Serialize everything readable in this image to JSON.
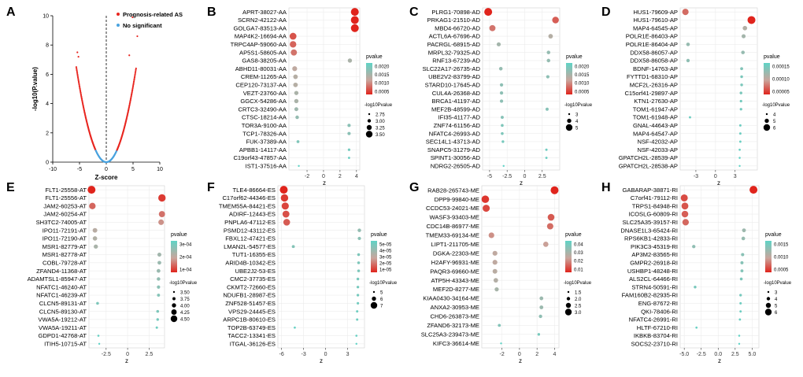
{
  "figure": {
    "panel_letters": [
      "A",
      "B",
      "C",
      "D",
      "E",
      "F",
      "G",
      "H"
    ]
  },
  "chart_data": [
    {
      "panel": "A",
      "type": "scatter",
      "xlabel": "Z-score",
      "ylabel": "-log10(P.value)",
      "xlim": [
        -10,
        10
      ],
      "ylim": [
        0,
        10
      ],
      "xticks": [
        "-10",
        "-5",
        "0",
        "5",
        "10"
      ],
      "yticks": [
        "0",
        "2",
        "4",
        "6",
        "8",
        "10"
      ],
      "legend": [
        "Prognosis-related AS",
        "No significant"
      ],
      "colors": {
        "significant": "#e8251f",
        "nonsig": "#4aa3df",
        "line": "#000000"
      },
      "threshold_x": 0,
      "outlier_points": [
        [
          5.8,
          8.6
        ],
        [
          4.9,
          9.9
        ],
        [
          -5.4,
          7.5
        ],
        [
          -5.2,
          7.2
        ],
        [
          4.3,
          7.3
        ]
      ],
      "curve": {
        "a": 0.207,
        "max_abs_z": 5.6,
        "sig_abs_z": 1.96
      }
    },
    {
      "panel": "B",
      "type": "scatter",
      "subtype": "dot",
      "xlabel": "z",
      "xlim": [
        -4.2,
        4.4
      ],
      "xticks": [
        -2,
        0,
        2,
        4
      ],
      "color_legend": {
        "title": "pvalue",
        "ticks": [
          "0.0020",
          "0.0015",
          "0.0010",
          "0.0005"
        ]
      },
      "size_legend": {
        "title": "-log10Pvalue",
        "ticks": [
          "2.75",
          "3.00",
          "3.25",
          "3.50"
        ]
      },
      "categories": [
        "APRT-38027-AA",
        "SCRN2-42122-AA",
        "GOLGA7-83513-AA",
        "MAP4K2-16694-AA",
        "TRPC4AP-59060-AA",
        "AP5S1-58605-AA",
        "GAS8-38205-AA",
        "ABHD11-80031-AA",
        "CREM-11265-AA",
        "CEP120-73137-AA",
        "VEZT-23760-AA",
        "GGCX-54286-AA",
        "CRTC3-32490-AA",
        "CTSC-18214-AA",
        "TOR3A-9100-AA",
        "TCP1-78326-AA",
        "FUK-37389-AA",
        "APBB1-14117-AA",
        "C19orf43-47857-AA",
        "IST1-37516-AA"
      ],
      "z": [
        3.8,
        3.8,
        3.8,
        -3.7,
        -3.7,
        -3.6,
        3.2,
        -3.5,
        -3.4,
        -3.4,
        -3.3,
        -3.3,
        -3.3,
        -3.2,
        3.1,
        3.1,
        -3.1,
        3.1,
        3.1,
        -3.0
      ],
      "logp": [
        3.65,
        3.65,
        3.65,
        3.5,
        3.45,
        3.4,
        3.1,
        3.2,
        3.15,
        3.15,
        3.1,
        3.1,
        3.05,
        3.0,
        2.95,
        2.95,
        2.9,
        2.85,
        2.8,
        2.75
      ]
    },
    {
      "panel": "C",
      "type": "scatter",
      "subtype": "dot",
      "xlabel": "z",
      "xlim": [
        -6.0,
        5.0
      ],
      "xticks": [
        -5.0,
        -2.5,
        0.0,
        2.5
      ],
      "color_legend": {
        "title": "pvalue",
        "ticks": [
          "0.0020",
          "0.0015",
          "0.0010",
          "0.0005"
        ]
      },
      "size_legend": {
        "title": "-log10Pvalue",
        "ticks": [
          "3",
          "4",
          "5"
        ]
      },
      "categories": [
        "PLRG1-70898-AD",
        "PRKAG1-21510-AD",
        "MBD4-66720-AD",
        "ACTL6A-67696-AD",
        "PACRGL-68915-AD",
        "MRPL32-79325-AD",
        "RNF13-67239-AD",
        "SLC22A17-26735-AD",
        "UBE2V2-83799-AD",
        "STARD10-17645-AD",
        "CUL4A-26368-AD",
        "BRCA1-41197-AD",
        "MEF2B-48599-AD",
        "IFI35-41177-AD",
        "ZNF74-61156-AD",
        "NFATC4-26993-AD",
        "SEC14L1-43713-AD",
        "SNAPC5-31279-AD",
        "SPINT1-30056-AD",
        "NDRG2-26505-AD"
      ],
      "z": [
        -5.2,
        4.4,
        -4.6,
        3.7,
        -3.7,
        3.4,
        3.4,
        -3.4,
        3.3,
        -3.3,
        -3.3,
        -3.3,
        3.2,
        -3.2,
        -3.2,
        -3.2,
        -3.1,
        3.1,
        3.1,
        -3.0
      ],
      "logp": [
        5.4,
        4.9,
        4.7,
        4.0,
        3.8,
        3.6,
        3.6,
        3.6,
        3.5,
        3.5,
        3.5,
        3.5,
        3.4,
        3.4,
        3.3,
        3.3,
        3.2,
        3.1,
        3.05,
        2.9
      ]
    },
    {
      "panel": "D",
      "type": "scatter",
      "subtype": "dot",
      "xlabel": "z",
      "xlim": [
        -5.4,
        6.4
      ],
      "xticks": [
        -3,
        0,
        3
      ],
      "color_legend": {
        "title": "pvalue",
        "ticks": [
          "0.00015",
          "0.00010",
          "0.00005"
        ]
      },
      "size_legend": {
        "title": "-log10Pvalue",
        "ticks": [
          "4",
          "5",
          "6"
        ]
      },
      "categories": [
        "HUS1-79609-AP",
        "HUS1-79610-AP",
        "MAP4-64545-AP",
        "POLR1E-86403-AP",
        "POLR1E-86404-AP",
        "DDX58-86057-AP",
        "DDX58-86058-AP",
        "BDNF-14763-AP",
        "FYTTD1-68310-AP",
        "MCF2L-26316-AP",
        "C15orf41-29897-AP",
        "KTN1-27630-AP",
        "TOM1-61947-AP",
        "TOM1-61948-AP",
        "GNAL-44643-AP",
        "MAP4-64547-AP",
        "NSF-42032-AP",
        "NSF-42033-AP",
        "GPATCH2L-28539-AP",
        "GPATCH2L-28538-AP"
      ],
      "z": [
        -4.6,
        5.5,
        4.5,
        4.3,
        -4.2,
        4.2,
        -4.2,
        4.0,
        4.0,
        4.0,
        3.9,
        3.9,
        3.9,
        -3.9,
        3.8,
        3.8,
        3.8,
        3.7,
        3.7,
        3.7
      ],
      "logp": [
        5.9,
        6.6,
        5.0,
        4.8,
        4.6,
        4.6,
        4.5,
        4.3,
        4.2,
        4.2,
        4.2,
        4.1,
        4.1,
        4.0,
        4.0,
        4.0,
        3.95,
        3.9,
        3.85,
        3.8
      ]
    },
    {
      "panel": "E",
      "type": "scatter",
      "subtype": "dot",
      "xlabel": "z",
      "xlim": [
        -4.5,
        4.3
      ],
      "xticks": [
        -2.5,
        0.0,
        2.5
      ],
      "color_legend": {
        "title": "pvalue",
        "ticks": [
          "3e-04",
          "2e-04",
          "1e-04"
        ]
      },
      "size_legend": {
        "title": "-log10Pvalue",
        "ticks": [
          "3.50",
          "3.75",
          "4.00",
          "4.25",
          "4.50"
        ]
      },
      "categories": [
        "FLT1-25558-AT",
        "FLT1-25556-AT",
        "JAM2-60253-AT",
        "JAM2-60254-AT",
        "SH3TC2-74005-AT",
        "IPO11-72191-AT",
        "IPO11-72190-AT",
        "MSR1-82779-AT",
        "MSR1-82778-AT",
        "COBL-79728-AT",
        "ZFAND4-11368-AT",
        "ADAMTSL1-85947-AT",
        "NFATC1-46240-AT",
        "NFATC1-46239-AT",
        "CLCN5-89131-AT",
        "CLCN5-89130-AT",
        "VWA5A-19212-AT",
        "VWA5A-19211-AT",
        "GDPD1-42768-AT",
        "ITIH5-10715-AT"
      ],
      "z": [
        -4.2,
        4.0,
        -4.1,
        4.0,
        3.9,
        -3.8,
        -3.8,
        -3.7,
        3.7,
        3.7,
        3.6,
        3.6,
        3.6,
        3.6,
        -3.5,
        3.5,
        3.5,
        3.4,
        -3.4,
        -3.3
      ],
      "logp": [
        4.7,
        4.6,
        4.4,
        4.35,
        4.2,
        4.0,
        3.95,
        3.9,
        3.85,
        3.8,
        3.8,
        3.75,
        3.7,
        3.65,
        3.6,
        3.6,
        3.55,
        3.5,
        3.45,
        3.4
      ]
    },
    {
      "panel": "F",
      "type": "scatter",
      "subtype": "dot",
      "xlabel": "z",
      "xlim": [
        -6.5,
        5.3
      ],
      "xticks": [
        -6,
        -3,
        0,
        3
      ],
      "color_legend": {
        "title": "pvalue",
        "ticks": [
          "5e-05",
          "4e-05",
          "3e-05",
          "2e-05",
          "1e-05"
        ]
      },
      "size_legend": {
        "title": "-log10Pvalue",
        "ticks": [
          "5",
          "6",
          "7"
        ]
      },
      "categories": [
        "TLE4-86664-ES",
        "C17orf62-44346-ES",
        "TMEM55A-84421-ES",
        "ADIRF-12443-ES",
        "PNPLA6-47112-ES",
        "PSMD12-43112-ES",
        "FBXL12-47421-ES",
        "LMAN2L-54577-ES",
        "TUT1-16355-ES",
        "ARID4B-10342-ES",
        "UBE2J2-53-ES",
        "CMC2-37735-ES",
        "CKMT2-72660-ES",
        "NDUFB1-28987-ES",
        "ZNF528-51457-ES",
        "VPS29-24445-ES",
        "ARPC1B-80610-ES",
        "TOP2B-63749-ES",
        "TACC2-13341-ES",
        "ITGAL-36126-ES"
      ],
      "z": [
        -5.7,
        -5.6,
        -5.5,
        -5.4,
        -5.3,
        4.6,
        4.6,
        -4.4,
        4.5,
        4.5,
        4.5,
        4.4,
        4.4,
        4.4,
        4.4,
        4.3,
        4.3,
        -4.2,
        4.2,
        4.2
      ],
      "logp": [
        7.2,
        7.0,
        6.9,
        6.8,
        6.7,
        5.3,
        5.2,
        5.1,
        5.0,
        5.0,
        5.0,
        4.95,
        4.9,
        4.9,
        4.85,
        4.8,
        4.8,
        4.7,
        4.7,
        4.6
      ]
    },
    {
      "panel": "G",
      "type": "scatter",
      "subtype": "dot",
      "xlabel": "z",
      "xlim": [
        -4.3,
        4.5
      ],
      "xticks": [
        -2,
        0,
        2,
        4
      ],
      "color_legend": {
        "title": "pvalue",
        "ticks": [
          "0.04",
          "0.03",
          "0.02",
          "0.01"
        ]
      },
      "size_legend": {
        "title": "-log10Pvalue",
        "ticks": [
          "1.5",
          "2.0",
          "2.5",
          "3.0"
        ]
      },
      "categories": [
        "RAB28-265743-ME",
        "DPP9-99840-ME",
        "CCDC53-24021-ME",
        "WASF3-93403-ME",
        "CDC14B-86977-ME",
        "TMEM33-69134-ME",
        "LIPT1-211705-ME",
        "DGKA-22303-ME",
        "H2AFY-96931-ME",
        "PAQR3-69660-ME",
        "ATP5H-43343-ME",
        "MEF2D-8277-ME",
        "KIAA0430-34164-ME",
        "ANXA2-30953-ME",
        "CHD6-263873-ME",
        "ZFAND6-32173-ME",
        "SLC25A3-239473-ME",
        "KIFC3-36614-ME"
      ],
      "z": [
        4.0,
        -3.9,
        -3.8,
        3.6,
        3.5,
        -3.2,
        3.0,
        -2.8,
        -2.8,
        -2.8,
        -2.7,
        -2.6,
        2.5,
        2.5,
        2.4,
        -2.3,
        2.2,
        -2.1
      ],
      "logp": [
        3.2,
        3.1,
        3.0,
        2.9,
        2.8,
        2.6,
        2.5,
        2.4,
        2.4,
        2.35,
        2.3,
        2.2,
        2.1,
        2.1,
        2.0,
        1.9,
        1.8,
        1.6
      ]
    },
    {
      "panel": "H",
      "type": "scatter",
      "subtype": "dot",
      "xlabel": "z",
      "xlim": [
        -5.6,
        6.0
      ],
      "xticks": [
        "-5.0",
        "-2.5",
        "0.0",
        "2.5",
        "5.0"
      ],
      "color_legend": {
        "title": "pvalue",
        "ticks": [
          "0.0015",
          "0.0010",
          "0.0005"
        ]
      },
      "size_legend": {
        "title": "-log10Pvalue",
        "ticks": [
          "3",
          "4",
          "5",
          "6"
        ]
      },
      "categories": [
        "GABARAP-38871-RI",
        "C7orf41-79112-RI",
        "TRPS1-84948-RI",
        "ICOSLG-60809-RI",
        "SLC25A35-39157-RI",
        "DNASE1L3-65424-RI",
        "RPS6KB1-42833-RI",
        "PIK3C3-45319-RI",
        "AP3M2-83565-RI",
        "GMPR2-26918-RI",
        "USHBP1-48248-RI",
        "ALS2CL-64466-RI",
        "STRN4-50591-RI",
        "FAM160B2-82935-RI",
        "ENG-87672-RI",
        "QKI-78406-RI",
        "NFATC4-26991-RI",
        "HLTF-67210-RI",
        "IKBKB-83704-RI",
        "SOCS2-23710-RI"
      ],
      "z": [
        5.2,
        -5.0,
        -4.9,
        -4.9,
        -4.8,
        3.8,
        3.7,
        -3.6,
        3.6,
        3.5,
        3.5,
        3.4,
        -3.4,
        3.3,
        3.3,
        3.3,
        3.2,
        -3.2,
        3.1,
        3.1
      ],
      "logp": [
        6.2,
        5.8,
        5.7,
        5.6,
        5.5,
        4.2,
        4.1,
        4.0,
        3.9,
        3.85,
        3.8,
        3.7,
        3.65,
        3.6,
        3.5,
        3.45,
        3.4,
        3.35,
        3.3,
        3.25
      ]
    }
  ]
}
